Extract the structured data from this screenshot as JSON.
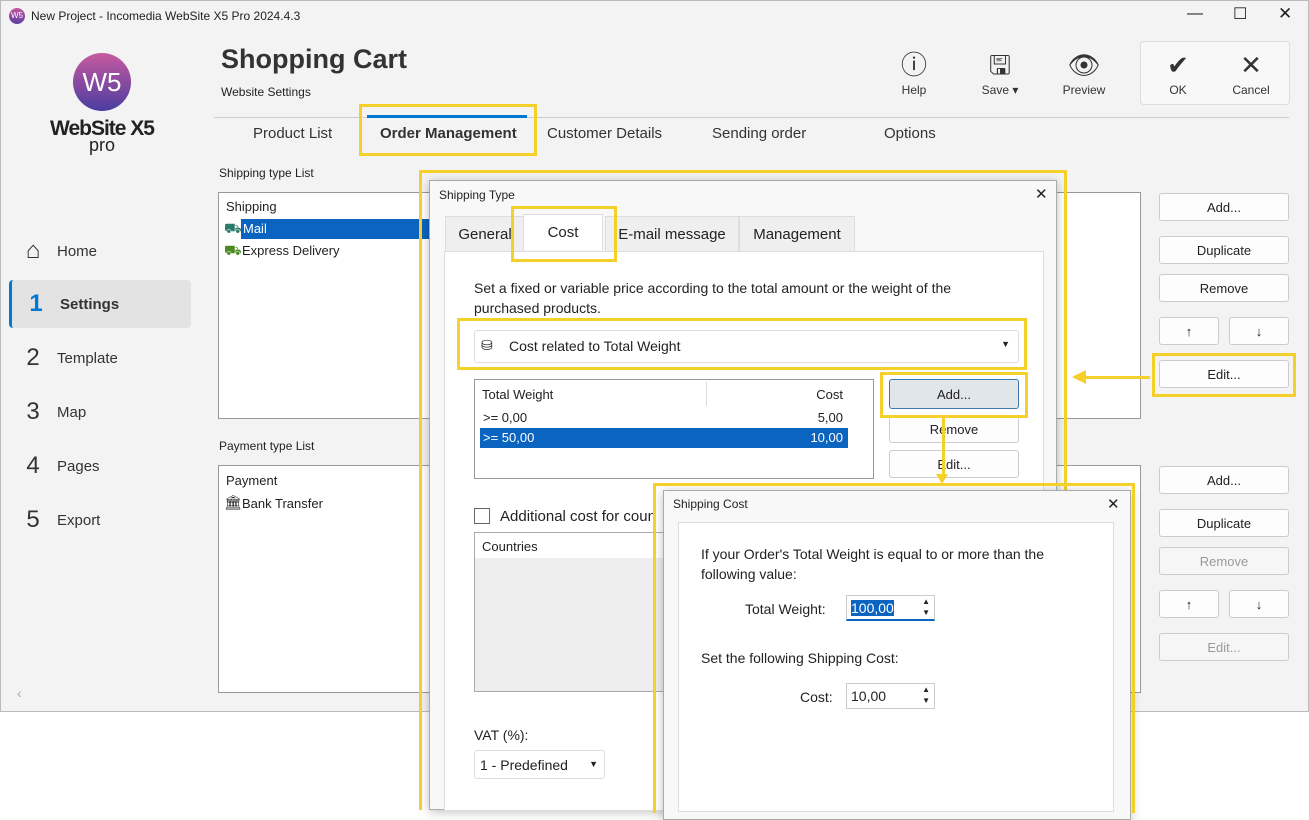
{
  "window": {
    "title": "New Project - Incomedia WebSite X5 Pro 2024.4.3"
  },
  "logo": {
    "line1": "WebSite X5",
    "line2": "pro"
  },
  "sidebar": {
    "items": [
      {
        "num": "",
        "label": "Home"
      },
      {
        "num": "1",
        "label": "Settings"
      },
      {
        "num": "2",
        "label": "Template"
      },
      {
        "num": "3",
        "label": "Map"
      },
      {
        "num": "4",
        "label": "Pages"
      },
      {
        "num": "5",
        "label": "Export"
      }
    ]
  },
  "header": {
    "title": "Shopping Cart",
    "subtitle": "Website Settings"
  },
  "toolbar": {
    "help": "Help",
    "save": "Save ▾",
    "preview": "Preview",
    "ok": "OK",
    "cancel": "Cancel"
  },
  "tabs": [
    "Product List",
    "Order Management",
    "Customer Details",
    "Sending order",
    "Options"
  ],
  "shipping": {
    "section": "Shipping type List",
    "header": "Shipping",
    "items": [
      "Mail",
      "Express Delivery"
    ],
    "buttons": [
      "Add...",
      "Duplicate",
      "Remove",
      "↑",
      "↓",
      "Edit..."
    ]
  },
  "payment": {
    "section": "Payment type List",
    "header": "Payment",
    "items": [
      "Bank Transfer"
    ],
    "buttons": [
      "Add...",
      "Duplicate",
      "Remove",
      "↑",
      "↓",
      "Edit..."
    ]
  },
  "shipping_type_dialog": {
    "title": "Shipping Type",
    "tabs": [
      "General",
      "Cost",
      "E-mail message",
      "Management"
    ],
    "description": "Set a fixed or variable price according to the total amount or the weight of the purchased products.",
    "cost_mode": "Cost related to Total Weight",
    "table": {
      "headers": [
        "Total Weight",
        "Cost"
      ],
      "rows": [
        [
          ">= 0,00",
          "5,00"
        ],
        [
          ">= 50,00",
          "10,00"
        ]
      ]
    },
    "buttons": [
      "Add...",
      "Remove",
      "Edit..."
    ],
    "additional_cost": "Additional cost for countries",
    "countries_header": "Countries",
    "vat_label": "VAT (%):",
    "vat_value": "1 - Predefined"
  },
  "shipping_cost_dialog": {
    "title": "Shipping Cost",
    "prompt": "If your Order's Total Weight is equal to or more than the following value:",
    "weight_label": "Total Weight:",
    "weight_value": "100,00",
    "cost_prompt": "Set the following Shipping Cost:",
    "cost_label": "Cost:",
    "cost_value": "10,00"
  },
  "colors": {
    "accent": "#0078d4",
    "highlight": "#f5cf2a",
    "selection": "#0a64c0"
  }
}
